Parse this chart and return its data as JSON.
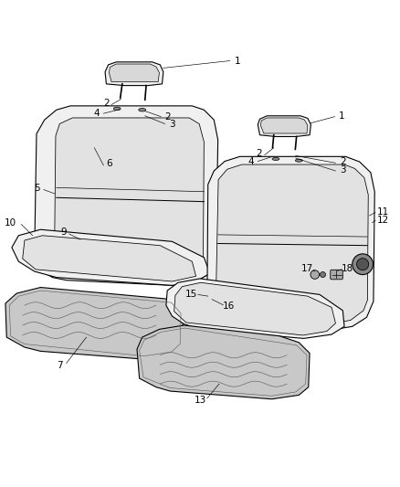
{
  "background_color": "#ffffff",
  "fig_width": 4.38,
  "fig_height": 5.33,
  "dpi": 100,
  "line_color": "#000000",
  "label_fontsize": 7.5
}
